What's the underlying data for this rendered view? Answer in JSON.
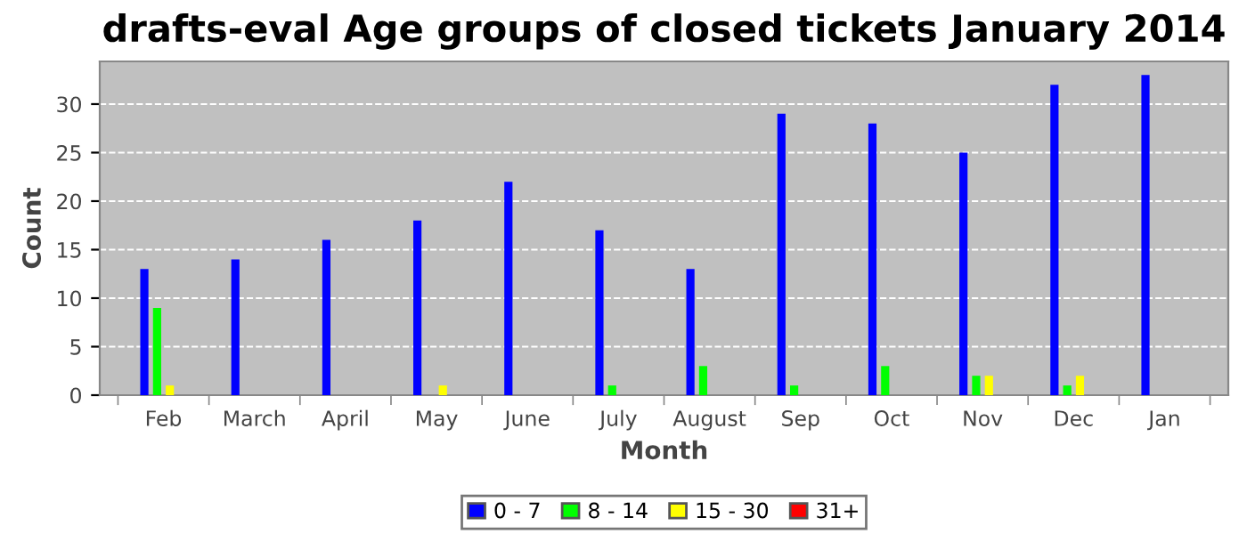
{
  "chart_data": {
    "type": "bar",
    "title": "drafts-eval Age groups of closed tickets January 2014",
    "xlabel": "Month",
    "ylabel": "Count",
    "categories": [
      "Feb",
      "March",
      "April",
      "May",
      "June",
      "July",
      "August",
      "Sep",
      "Oct",
      "Nov",
      "Dec",
      "Jan"
    ],
    "series": [
      {
        "name": "0 - 7",
        "color": "#0000ff",
        "values": [
          13,
          14,
          16,
          18,
          22,
          17,
          13,
          29,
          28,
          25,
          32,
          33
        ]
      },
      {
        "name": "8 - 14",
        "color": "#00ff00",
        "values": [
          9,
          0,
          0,
          0,
          0,
          1,
          3,
          1,
          3,
          2,
          1,
          0
        ]
      },
      {
        "name": "15 - 30",
        "color": "#ffff00",
        "values": [
          1,
          0,
          0,
          1,
          0,
          0,
          0,
          0,
          0,
          2,
          2,
          0
        ]
      },
      {
        "name": "31+",
        "color": "#ff0000",
        "values": [
          0,
          0,
          0,
          0,
          0,
          0,
          0,
          0,
          0,
          0,
          0,
          0
        ]
      }
    ],
    "ylim": [
      0,
      34.4
    ],
    "yticks": [
      0,
      5,
      10,
      15,
      20,
      25,
      30
    ],
    "grid": "y",
    "legend": "bottom"
  }
}
